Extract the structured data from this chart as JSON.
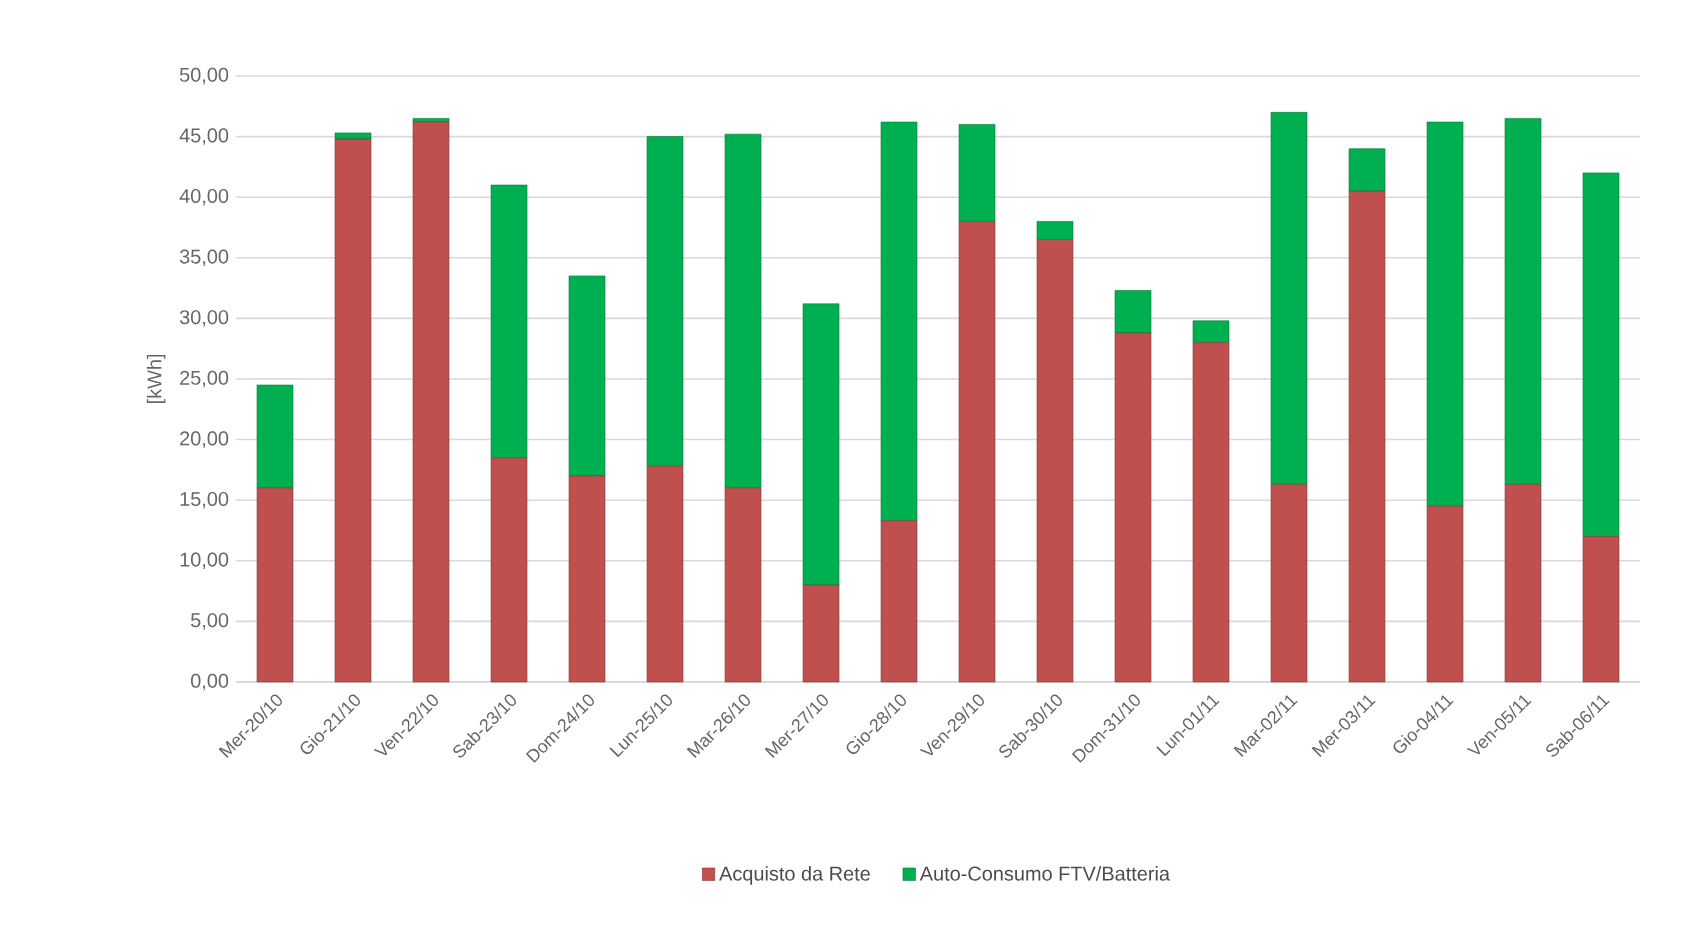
{
  "chart_data": {
    "type": "bar",
    "stacked": true,
    "ylabel": "[kWh]",
    "categories": [
      "Mer-20/10",
      "Gio-21/10",
      "Ven-22/10",
      "Sab-23/10",
      "Dom-24/10",
      "Lun-25/10",
      "Mar-26/10",
      "Mer-27/10",
      "Gio-28/10",
      "Ven-29/10",
      "Sab-30/10",
      "Dom-31/10",
      "Lun-01/11",
      "Mar-02/11",
      "Mer-03/11",
      "Gio-04/11",
      "Ven-05/11",
      "Sab-06/11"
    ],
    "series": [
      {
        "name": "Acquisto da Rete",
        "color": "#c0504d",
        "values": [
          16,
          44.8,
          46.2,
          18.5,
          17,
          17.8,
          16,
          8,
          13.3,
          38,
          36.5,
          28.8,
          28,
          16.3,
          40.5,
          14.5,
          16.3,
          12
        ]
      },
      {
        "name": "Auto-Consumo FTV/Batteria",
        "color": "#00b050",
        "values": [
          8.5,
          0.5,
          0.3,
          22.5,
          16.5,
          27.2,
          29.2,
          23.2,
          32.9,
          8,
          1.5,
          3.5,
          1.8,
          30.7,
          3.5,
          31.7,
          30.2,
          30
        ]
      }
    ],
    "ylim": [
      0,
      50
    ],
    "yticks": [
      {
        "value": 0,
        "label": "0,00"
      },
      {
        "value": 5,
        "label": "5,00"
      },
      {
        "value": 10,
        "label": "10,00"
      },
      {
        "value": 15,
        "label": "15,00"
      },
      {
        "value": 20,
        "label": "20,00"
      },
      {
        "value": 25,
        "label": "25,00"
      },
      {
        "value": 30,
        "label": "30,00"
      },
      {
        "value": 35,
        "label": "35,00"
      },
      {
        "value": 40,
        "label": "40,00"
      },
      {
        "value": 45,
        "label": "45,00"
      },
      {
        "value": 50,
        "label": "50,00"
      }
    ],
    "grid": "y",
    "legend": "bottom"
  }
}
